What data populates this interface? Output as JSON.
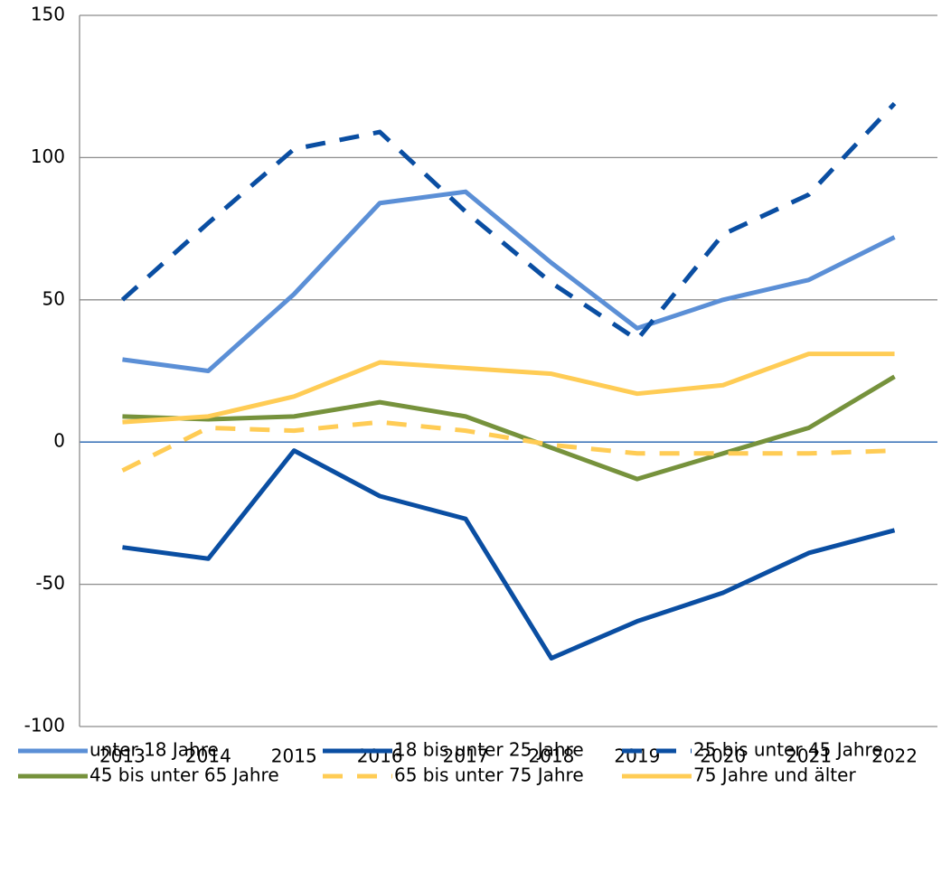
{
  "chart_data": {
    "type": "line",
    "categories": [
      "2013",
      "2014",
      "2015",
      "2016",
      "2017",
      "2018",
      "2019",
      "2020",
      "2021",
      "2022"
    ],
    "series": [
      {
        "name": "unter 18 Jahre",
        "color": "#5b8fd6",
        "dashed": false,
        "values": [
          29,
          25,
          52,
          84,
          88,
          63,
          40,
          50,
          57,
          72
        ]
      },
      {
        "name": "18 bis unter 25 Jahre",
        "color": "#0a4ea2",
        "dashed": false,
        "values": [
          -37,
          -41,
          -3,
          -19,
          -27,
          -76,
          -63,
          -53,
          -39,
          -31
        ]
      },
      {
        "name": "25 bis unter 45 Jahre",
        "color": "#0a4ea2",
        "dashed": true,
        "values": [
          50,
          77,
          103,
          109,
          81,
          56,
          36,
          73,
          87,
          119
        ]
      },
      {
        "name": "45 bis unter 65 Jahre",
        "color": "#76923c",
        "dashed": false,
        "values": [
          9,
          8,
          9,
          14,
          9,
          -2,
          -13,
          -4,
          5,
          23
        ]
      },
      {
        "name": "65 bis unter 75 Jahre",
        "color": "#ffcc55",
        "dashed": true,
        "values": [
          -10,
          5,
          4,
          7,
          4,
          -1,
          -4,
          -4,
          -4,
          -3
        ]
      },
      {
        "name": "75 Jahre und älter",
        "color": "#ffcc55",
        "dashed": false,
        "values": [
          7,
          9,
          16,
          28,
          26,
          24,
          17,
          20,
          31,
          31
        ]
      }
    ],
    "ylim": [
      -100,
      150
    ],
    "yticks": [
      -100,
      -50,
      0,
      50,
      100,
      150
    ],
    "grid": true
  }
}
